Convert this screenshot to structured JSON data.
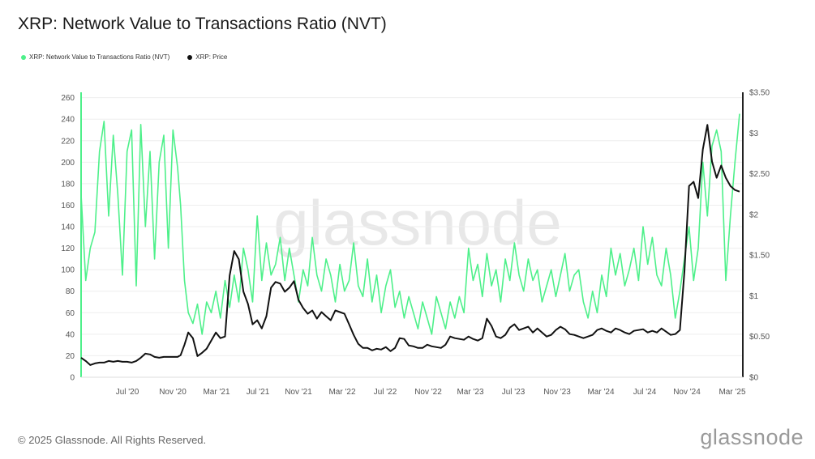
{
  "page": {
    "title": "XRP: Network Value to Transactions Ratio (NVT)",
    "copyright": "© 2025 Glassnode. All Rights Reserved.",
    "brand": "glassnode",
    "watermark": "glassnode"
  },
  "colors": {
    "nvt": "#4ef08a",
    "price": "#111111",
    "grid": "#eeeeee",
    "axis": "#222222"
  },
  "chart_data": {
    "type": "line",
    "title": "XRP: Network Value to Transactions Ratio (NVT)",
    "legend_position": "top-left",
    "grid": true,
    "x_tick_labels": [
      "Jul '20",
      "Nov '20",
      "Mar '21",
      "Jul '21",
      "Nov '21",
      "Mar '22",
      "Jul '22",
      "Nov '22",
      "Mar '23",
      "Jul '23",
      "Nov '23",
      "Mar '24",
      "Jul '24",
      "Nov '24",
      "Mar '25"
    ],
    "y_left": {
      "ticks": [
        0,
        20,
        40,
        60,
        80,
        100,
        120,
        140,
        160,
        180,
        200,
        220,
        240,
        260
      ],
      "range": [
        0,
        265
      ]
    },
    "y_right": {
      "ticks": [
        "$0",
        "$0.50",
        "$1",
        "$1.50",
        "$2",
        "$2.50",
        "$3",
        "$3.50"
      ],
      "values": [
        0,
        0.5,
        1,
        1.5,
        2,
        2.5,
        3,
        3.5
      ],
      "range": [
        0,
        3.5
      ]
    },
    "series": [
      {
        "name": "XRP: Network Value to Transactions Ratio (NVT)",
        "axis": "left",
        "points": [
          [
            0,
            170
          ],
          [
            0.6,
            90
          ],
          [
            1.2,
            120
          ],
          [
            1.8,
            135
          ],
          [
            2.4,
            210
          ],
          [
            3,
            238
          ],
          [
            3.6,
            150
          ],
          [
            4.2,
            225
          ],
          [
            4.8,
            170
          ],
          [
            5.4,
            95
          ],
          [
            6,
            210
          ],
          [
            6.6,
            230
          ],
          [
            7.2,
            85
          ],
          [
            7.8,
            235
          ],
          [
            8.4,
            140
          ],
          [
            9,
            210
          ],
          [
            9.6,
            110
          ],
          [
            10.2,
            200
          ],
          [
            10.8,
            225
          ],
          [
            11.4,
            120
          ],
          [
            12,
            230
          ],
          [
            12.6,
            195
          ],
          [
            13,
            160
          ],
          [
            13.5,
            90
          ],
          [
            14,
            60
          ],
          [
            14.6,
            50
          ],
          [
            15.2,
            68
          ],
          [
            15.8,
            40
          ],
          [
            16.4,
            70
          ],
          [
            17,
            60
          ],
          [
            17.6,
            80
          ],
          [
            18.2,
            55
          ],
          [
            18.8,
            90
          ],
          [
            19.4,
            65
          ],
          [
            20,
            95
          ],
          [
            20.6,
            70
          ],
          [
            21.2,
            120
          ],
          [
            21.8,
            100
          ],
          [
            22.4,
            70
          ],
          [
            23,
            150
          ],
          [
            23.6,
            90
          ],
          [
            24.2,
            125
          ],
          [
            24.8,
            95
          ],
          [
            25.4,
            105
          ],
          [
            26,
            130
          ],
          [
            26.6,
            90
          ],
          [
            27.2,
            120
          ],
          [
            27.8,
            95
          ],
          [
            28.4,
            70
          ],
          [
            29,
            100
          ],
          [
            29.6,
            85
          ],
          [
            30.2,
            130
          ],
          [
            30.8,
            95
          ],
          [
            31.4,
            80
          ],
          [
            32,
            110
          ],
          [
            32.6,
            95
          ],
          [
            33.2,
            70
          ],
          [
            33.8,
            105
          ],
          [
            34.4,
            80
          ],
          [
            35,
            90
          ],
          [
            35.6,
            125
          ],
          [
            36.2,
            85
          ],
          [
            36.8,
            75
          ],
          [
            37.4,
            110
          ],
          [
            38,
            70
          ],
          [
            38.6,
            95
          ],
          [
            39.2,
            60
          ],
          [
            39.8,
            85
          ],
          [
            40.4,
            100
          ],
          [
            41,
            65
          ],
          [
            41.6,
            80
          ],
          [
            42.2,
            55
          ],
          [
            42.8,
            75
          ],
          [
            43.4,
            60
          ],
          [
            44,
            45
          ],
          [
            44.6,
            70
          ],
          [
            45.2,
            55
          ],
          [
            45.8,
            40
          ],
          [
            46.4,
            75
          ],
          [
            47,
            60
          ],
          [
            47.6,
            45
          ],
          [
            48.2,
            70
          ],
          [
            48.8,
            55
          ],
          [
            49.4,
            75
          ],
          [
            50,
            60
          ],
          [
            50.6,
            120
          ],
          [
            51.2,
            90
          ],
          [
            51.8,
            105
          ],
          [
            52.4,
            75
          ],
          [
            53,
            115
          ],
          [
            53.6,
            85
          ],
          [
            54.2,
            100
          ],
          [
            54.8,
            70
          ],
          [
            55.4,
            110
          ],
          [
            56,
            90
          ],
          [
            56.6,
            125
          ],
          [
            57.2,
            95
          ],
          [
            57.8,
            80
          ],
          [
            58.4,
            110
          ],
          [
            59,
            90
          ],
          [
            59.6,
            100
          ],
          [
            60.2,
            70
          ],
          [
            60.8,
            85
          ],
          [
            61.4,
            100
          ],
          [
            62,
            75
          ],
          [
            62.6,
            95
          ],
          [
            63.2,
            115
          ],
          [
            63.8,
            80
          ],
          [
            64.4,
            95
          ],
          [
            65,
            100
          ],
          [
            65.6,
            70
          ],
          [
            66.2,
            55
          ],
          [
            66.8,
            80
          ],
          [
            67.4,
            60
          ],
          [
            68,
            95
          ],
          [
            68.6,
            75
          ],
          [
            69.2,
            120
          ],
          [
            69.8,
            95
          ],
          [
            70.4,
            115
          ],
          [
            71,
            85
          ],
          [
            71.6,
            100
          ],
          [
            72.2,
            120
          ],
          [
            72.8,
            90
          ],
          [
            73.4,
            140
          ],
          [
            74,
            105
          ],
          [
            74.6,
            130
          ],
          [
            75.2,
            95
          ],
          [
            75.8,
            85
          ],
          [
            76.4,
            120
          ],
          [
            77,
            95
          ],
          [
            77.6,
            55
          ],
          [
            78.2,
            80
          ],
          [
            78.8,
            110
          ],
          [
            79.4,
            140
          ],
          [
            80,
            90
          ],
          [
            80.6,
            120
          ],
          [
            81.2,
            200
          ],
          [
            81.8,
            150
          ],
          [
            82.4,
            215
          ],
          [
            83,
            230
          ],
          [
            83.6,
            210
          ],
          [
            84.2,
            90
          ],
          [
            84.8,
            150
          ],
          [
            85.4,
            200
          ],
          [
            86,
            245
          ]
        ]
      },
      {
        "name": "XRP: Price",
        "axis": "right",
        "points": [
          [
            0,
            0.24
          ],
          [
            0.6,
            0.2
          ],
          [
            1.2,
            0.15
          ],
          [
            1.8,
            0.17
          ],
          [
            2.4,
            0.18
          ],
          [
            3,
            0.18
          ],
          [
            3.6,
            0.2
          ],
          [
            4.2,
            0.19
          ],
          [
            4.8,
            0.2
          ],
          [
            5.4,
            0.19
          ],
          [
            6,
            0.19
          ],
          [
            6.6,
            0.18
          ],
          [
            7.2,
            0.2
          ],
          [
            7.8,
            0.24
          ],
          [
            8.4,
            0.29
          ],
          [
            9,
            0.28
          ],
          [
            9.6,
            0.25
          ],
          [
            10.2,
            0.24
          ],
          [
            10.8,
            0.25
          ],
          [
            11.4,
            0.25
          ],
          [
            12,
            0.25
          ],
          [
            12.6,
            0.25
          ],
          [
            13,
            0.27
          ],
          [
            13.5,
            0.4
          ],
          [
            14,
            0.55
          ],
          [
            14.6,
            0.48
          ],
          [
            15.2,
            0.26
          ],
          [
            15.8,
            0.3
          ],
          [
            16.4,
            0.35
          ],
          [
            17,
            0.45
          ],
          [
            17.6,
            0.55
          ],
          [
            18.2,
            0.48
          ],
          [
            18.8,
            0.5
          ],
          [
            19.4,
            1.25
          ],
          [
            20,
            1.55
          ],
          [
            20.6,
            1.45
          ],
          [
            21.2,
            1.05
          ],
          [
            21.8,
            0.9
          ],
          [
            22.4,
            0.65
          ],
          [
            23,
            0.7
          ],
          [
            23.6,
            0.6
          ],
          [
            24.2,
            0.75
          ],
          [
            24.8,
            1.1
          ],
          [
            25.4,
            1.17
          ],
          [
            26,
            1.15
          ],
          [
            26.6,
            1.05
          ],
          [
            27.2,
            1.1
          ],
          [
            27.8,
            1.18
          ],
          [
            28.4,
            0.95
          ],
          [
            29,
            0.85
          ],
          [
            29.6,
            0.78
          ],
          [
            30.2,
            0.82
          ],
          [
            30.8,
            0.72
          ],
          [
            31.4,
            0.8
          ],
          [
            32,
            0.75
          ],
          [
            32.6,
            0.7
          ],
          [
            33.2,
            0.82
          ],
          [
            33.8,
            0.8
          ],
          [
            34.4,
            0.78
          ],
          [
            35,
            0.65
          ],
          [
            35.6,
            0.52
          ],
          [
            36.2,
            0.41
          ],
          [
            36.8,
            0.36
          ],
          [
            37.4,
            0.36
          ],
          [
            38,
            0.33
          ],
          [
            38.6,
            0.35
          ],
          [
            39.2,
            0.34
          ],
          [
            39.8,
            0.37
          ],
          [
            40.4,
            0.32
          ],
          [
            41,
            0.36
          ],
          [
            41.6,
            0.48
          ],
          [
            42.2,
            0.47
          ],
          [
            42.8,
            0.39
          ],
          [
            43.4,
            0.38
          ],
          [
            44,
            0.36
          ],
          [
            44.6,
            0.36
          ],
          [
            45.2,
            0.4
          ],
          [
            45.8,
            0.38
          ],
          [
            46.4,
            0.37
          ],
          [
            47,
            0.36
          ],
          [
            47.6,
            0.4
          ],
          [
            48.2,
            0.5
          ],
          [
            48.8,
            0.48
          ],
          [
            49.4,
            0.47
          ],
          [
            50,
            0.46
          ],
          [
            50.6,
            0.5
          ],
          [
            51.2,
            0.47
          ],
          [
            51.8,
            0.45
          ],
          [
            52.4,
            0.48
          ],
          [
            53,
            0.72
          ],
          [
            53.6,
            0.63
          ],
          [
            54.2,
            0.5
          ],
          [
            54.8,
            0.48
          ],
          [
            55.4,
            0.52
          ],
          [
            56,
            0.61
          ],
          [
            56.6,
            0.65
          ],
          [
            57.2,
            0.58
          ],
          [
            57.8,
            0.6
          ],
          [
            58.4,
            0.62
          ],
          [
            59,
            0.55
          ],
          [
            59.6,
            0.6
          ],
          [
            60.2,
            0.55
          ],
          [
            60.8,
            0.5
          ],
          [
            61.4,
            0.52
          ],
          [
            62,
            0.58
          ],
          [
            62.6,
            0.62
          ],
          [
            63.2,
            0.59
          ],
          [
            63.8,
            0.53
          ],
          [
            64.4,
            0.52
          ],
          [
            65,
            0.5
          ],
          [
            65.6,
            0.48
          ],
          [
            66.2,
            0.5
          ],
          [
            66.8,
            0.52
          ],
          [
            67.4,
            0.58
          ],
          [
            68,
            0.6
          ],
          [
            68.6,
            0.57
          ],
          [
            69.2,
            0.55
          ],
          [
            69.8,
            0.6
          ],
          [
            70.4,
            0.58
          ],
          [
            71,
            0.55
          ],
          [
            71.6,
            0.53
          ],
          [
            72.2,
            0.57
          ],
          [
            72.8,
            0.58
          ],
          [
            73.4,
            0.59
          ],
          [
            74,
            0.55
          ],
          [
            74.6,
            0.57
          ],
          [
            75.2,
            0.55
          ],
          [
            75.8,
            0.6
          ],
          [
            76.4,
            0.56
          ],
          [
            77,
            0.52
          ],
          [
            77.6,
            0.53
          ],
          [
            78.2,
            0.58
          ],
          [
            78.8,
            1.3
          ],
          [
            79.4,
            2.35
          ],
          [
            80,
            2.4
          ],
          [
            80.6,
            2.2
          ],
          [
            81.2,
            2.8
          ],
          [
            81.8,
            3.1
          ],
          [
            82.4,
            2.65
          ],
          [
            83,
            2.45
          ],
          [
            83.6,
            2.6
          ],
          [
            84.2,
            2.45
          ],
          [
            84.8,
            2.35
          ],
          [
            85.4,
            2.3
          ],
          [
            86,
            2.28
          ]
        ]
      }
    ]
  }
}
